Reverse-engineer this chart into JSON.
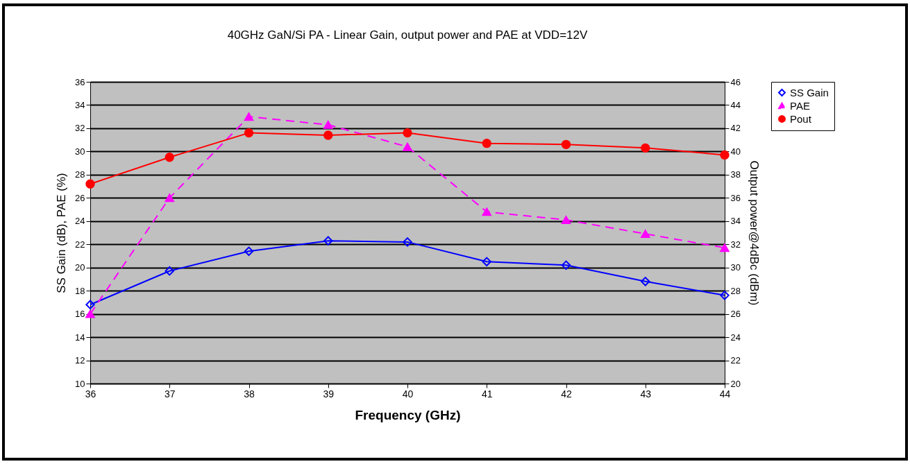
{
  "chart_data": {
    "type": "line",
    "title": "40GHz GaN/Si PA - Linear Gain, output power and PAE at VDD=12V",
    "xlabel": "Frequency (GHz)",
    "ylabel": "SS Gain (dB), PAE (%)",
    "y2label": "Output power@4dBc (dBm)",
    "x": [
      36,
      37,
      38,
      39,
      40,
      41,
      42,
      43,
      44
    ],
    "xlim": [
      36,
      44
    ],
    "xticks": [
      36,
      37,
      38,
      39,
      40,
      41,
      42,
      43,
      44
    ],
    "ylim": [
      10,
      36
    ],
    "yticks": [
      10,
      12,
      14,
      16,
      18,
      20,
      22,
      24,
      26,
      28,
      30,
      32,
      34,
      36
    ],
    "y2lim": [
      20,
      46
    ],
    "y2ticks": [
      20,
      22,
      24,
      26,
      28,
      30,
      32,
      34,
      36,
      38,
      40,
      42,
      44,
      46
    ],
    "grid": "y",
    "legend": "right",
    "series": [
      {
        "name": "SS Gain",
        "color": "#0000ff",
        "marker": "diamond",
        "line_style": "solid",
        "values": [
          16.8,
          19.7,
          21.4,
          22.3,
          22.2,
          20.5,
          20.2,
          18.8,
          17.6
        ]
      },
      {
        "name": "PAE",
        "color": "#ff00ff",
        "marker": "triangle",
        "line_style": "dashed",
        "values": [
          16,
          26,
          33,
          32.3,
          30.4,
          24.8,
          24.1,
          22.9,
          21.7
        ]
      },
      {
        "name": "Pout",
        "color": "#ff0000",
        "marker": "circle",
        "line_style": "solid",
        "axis": "y2",
        "values": [
          37.2,
          39.5,
          41.6,
          41.4,
          41.6,
          40.7,
          40.6,
          40.3,
          39.7
        ]
      }
    ]
  }
}
